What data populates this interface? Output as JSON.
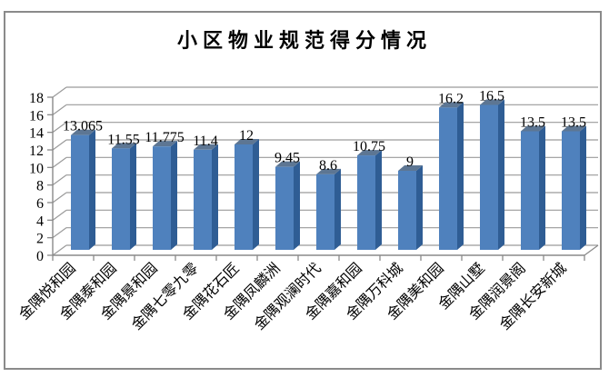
{
  "title": "小区物业规范得分情况",
  "colors": {
    "bar_front": "#4f81bd",
    "bar_side": "#2f5d94",
    "bar_top": "#5d7693",
    "gridline": "#9a9a9a",
    "axis": "#8a8a8a",
    "text": "#000000",
    "border": "#8a8a8a",
    "background": "#ffffff"
  },
  "chart_data": {
    "type": "bar",
    "style": "3d-clustered-column",
    "title": "小区物业规范得分情况",
    "categories": [
      "金隅悦和园",
      "金隅泰和园",
      "金隅景和园",
      "金隅七零九零",
      "金隅花石匠",
      "金隅凤麟洲",
      "金隅观澜时代",
      "金隅嘉和园",
      "金隅万科城",
      "金隅美和园",
      "金隅山墅",
      "金隅润景阁",
      "金隅长安新城"
    ],
    "values": [
      13.065,
      11.55,
      11.775,
      11.4,
      12,
      9.45,
      8.6,
      10.75,
      9,
      16.2,
      16.5,
      13.5,
      13.5
    ],
    "data_labels": [
      "13.065",
      "11.55",
      "11.775",
      "11.4",
      "12",
      "9.45",
      "8.6",
      "10.75",
      "9",
      "16.2",
      "16.5",
      "13.5",
      "13.5"
    ],
    "xlabel": "",
    "ylabel": "",
    "ylim": [
      0,
      18
    ],
    "yticks": [
      0,
      2,
      4,
      6,
      8,
      10,
      12,
      14,
      16,
      18
    ],
    "grid": true,
    "legend": "none",
    "category_label_rotation_deg": 45
  }
}
